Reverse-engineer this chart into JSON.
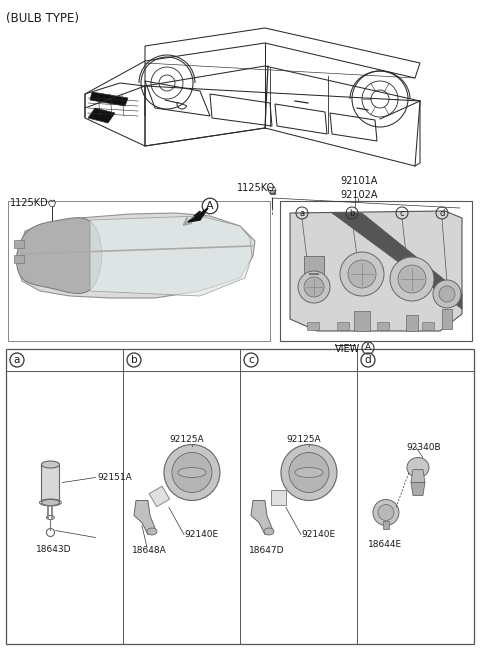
{
  "title": "(BULB TYPE)",
  "bg_color": "#ffffff",
  "text_color": "#1a1a1a",
  "line_color": "#333333",
  "gray_fill": "#cccccc",
  "dark_gray": "#888888",
  "light_gray": "#e8e8e8",
  "font_size_title": 8.5,
  "font_size_label": 7,
  "font_size_part": 6.5,
  "section_labels": [
    "a",
    "b",
    "c",
    "d"
  ],
  "part_numbers": {
    "a": [
      "92151A",
      "18643D"
    ],
    "b": [
      "92125A",
      "92140E",
      "18648A"
    ],
    "c": [
      "92125A",
      "92140E",
      "18647D"
    ],
    "d": [
      "92340B",
      "18644E"
    ]
  },
  "label_1125KO": "1125KO",
  "label_1125KD": "1125KD",
  "label_9210x": "92101A\n92102A",
  "view_label": "VIEW"
}
